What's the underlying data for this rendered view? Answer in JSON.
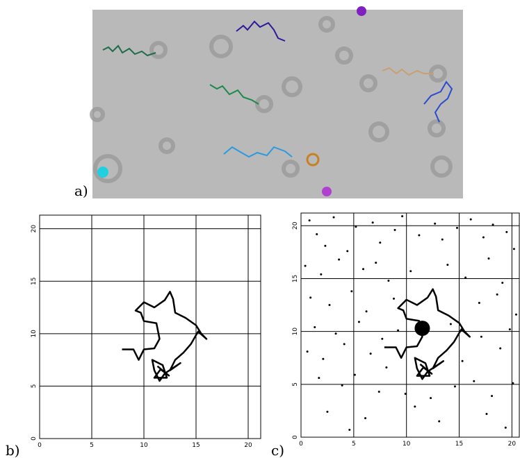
{
  "panel_labels": [
    "a)",
    "b)",
    "c)"
  ],
  "chart_data": [
    {
      "type": "line",
      "color": "#000000",
      "grid": true,
      "xlim": [
        0,
        21.2
      ],
      "ylim": [
        0,
        21.3
      ],
      "xticks": [
        0,
        5,
        10,
        15,
        20
      ],
      "yticks": [
        0,
        5,
        10,
        15,
        20
      ],
      "x": [
        7.9,
        9,
        9.5,
        10,
        11,
        11.5,
        11.2,
        10,
        9.7,
        9.2,
        10,
        11,
        12,
        12.5,
        12.8,
        13,
        14,
        15,
        15.5,
        16,
        15.2,
        14.5,
        13.8,
        13,
        12.5,
        13.5,
        12,
        11.5,
        11,
        10.8,
        11.8,
        12.2,
        11,
        11.6,
        12.4,
        11.3
      ],
      "values": [
        8.5,
        8.5,
        7.5,
        8.5,
        8.6,
        9.5,
        11,
        11.2,
        12,
        12.2,
        13,
        12.5,
        13.2,
        14,
        13.3,
        12,
        11.5,
        10.8,
        10,
        9.5,
        10.2,
        9,
        8.2,
        7.5,
        6.5,
        7.2,
        6.2,
        5.5,
        6.5,
        7.5,
        7,
        5.8,
        5.8,
        6.6,
        6,
        6.9
      ]
    },
    {
      "type": "line",
      "color": "#000000",
      "grid": true,
      "xlim": [
        0,
        20.7
      ],
      "ylim": [
        0,
        21.2
      ],
      "xticks": [
        0,
        5,
        10,
        15,
        20
      ],
      "yticks": [
        0,
        5,
        10,
        15,
        20
      ],
      "x": [
        7.9,
        9,
        9.5,
        10,
        11,
        11.5,
        11.2,
        10,
        9.7,
        9.2,
        10,
        11,
        12,
        12.5,
        12.8,
        13,
        14,
        15,
        15.5,
        16,
        15.2,
        14.5,
        13.8,
        13,
        12.5,
        13.5,
        12,
        11.5,
        11,
        10.8,
        11.8,
        12.2,
        11,
        11.6,
        12.4,
        11.3
      ],
      "values": [
        8.5,
        8.5,
        7.5,
        8.5,
        8.6,
        9.5,
        11,
        11.2,
        12,
        12.2,
        13,
        12.5,
        13.2,
        14,
        13.3,
        12,
        11.5,
        10.8,
        10,
        9.5,
        10.2,
        9,
        8.2,
        7.5,
        6.5,
        7.2,
        6.2,
        5.5,
        6.5,
        7.5,
        7,
        5.8,
        5.8,
        6.6,
        6,
        6.9
      ],
      "points": {
        "x": [
          0.8,
          1.5,
          2.3,
          3.1,
          4.4,
          5.2,
          6.8,
          7.5,
          8.9,
          9.6,
          11.2,
          12.7,
          13.4,
          14.8,
          16.1,
          17.3,
          18.2,
          19.5,
          20.2,
          0.4,
          1.9,
          3.6,
          5.9,
          7.1,
          8.3,
          10.4,
          13.9,
          15.6,
          17.8,
          19.1,
          0.9,
          2.7,
          4.8,
          6.2,
          8.8,
          16.9,
          18.6,
          20.4,
          1.3,
          3.3,
          5.5,
          7.7,
          9.2,
          14.2,
          17.1,
          19.8,
          0.6,
          2.1,
          4.1,
          6.6,
          8.1,
          15.3,
          18.9,
          1.7,
          3.9,
          5.1,
          7.4,
          9.9,
          12.3,
          14.6,
          16.4,
          18.1,
          20.1,
          2.5,
          6.1,
          10.8,
          13.1,
          17.6,
          19.4,
          4.6
        ],
        "y": [
          20.5,
          19.2,
          18.1,
          20.8,
          17.6,
          19.9,
          20.3,
          18.4,
          19.6,
          20.9,
          19.1,
          20.2,
          18.7,
          19.8,
          20.6,
          18.9,
          20.1,
          19.4,
          17.8,
          16.2,
          15.4,
          16.8,
          15.9,
          16.5,
          14.8,
          15.7,
          16.3,
          15.1,
          16.9,
          14.6,
          13.2,
          12.5,
          13.8,
          11.9,
          13.1,
          12.7,
          13.5,
          11.6,
          10.4,
          9.8,
          10.9,
          9.3,
          10.1,
          10.7,
          9.5,
          10.2,
          8.1,
          7.4,
          8.8,
          7.9,
          6.6,
          7.2,
          8.4,
          5.6,
          4.9,
          5.9,
          4.3,
          4.1,
          3.7,
          4.8,
          5.3,
          3.9,
          5.1,
          2.4,
          1.8,
          2.9,
          1.5,
          2.2,
          0.9,
          0.7
        ]
      },
      "marker": {
        "x": 11.5,
        "y": 10.3
      }
    }
  ]
}
